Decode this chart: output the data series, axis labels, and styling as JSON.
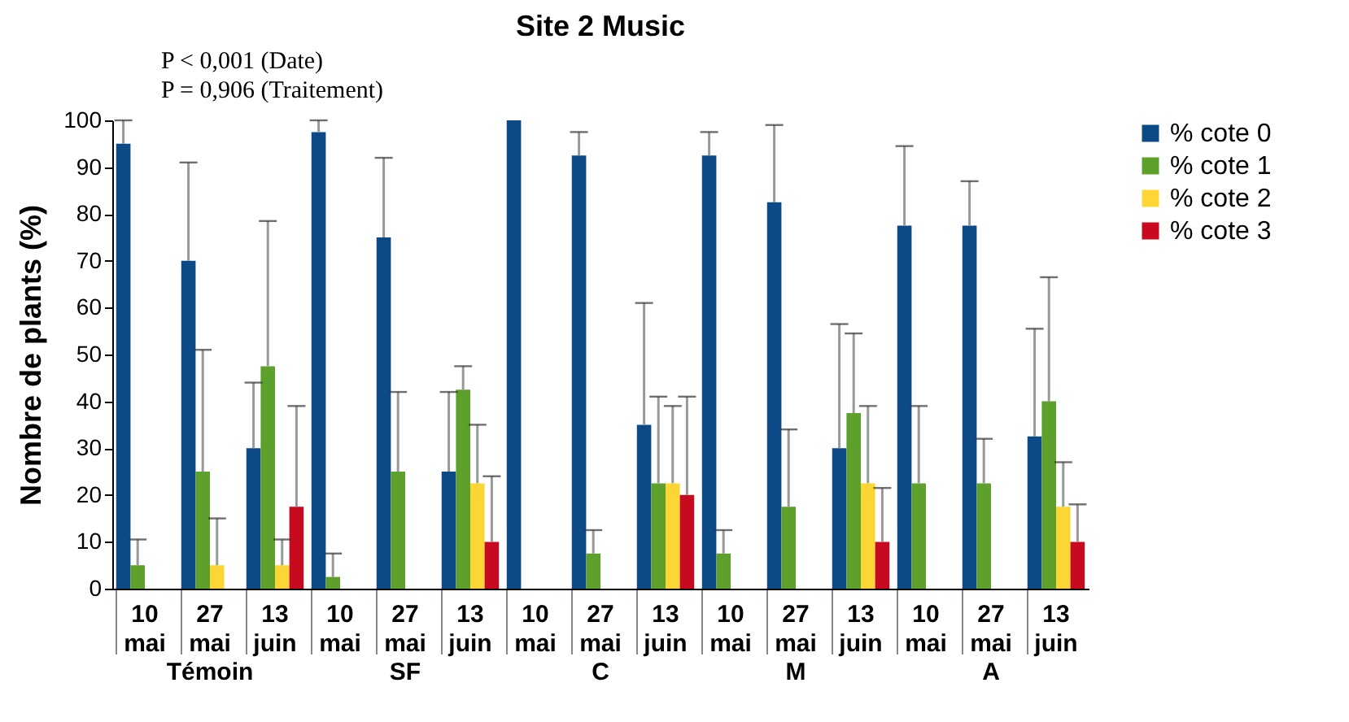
{
  "chart_data": {
    "type": "bar",
    "title": "Site 2 Music",
    "ylabel": "Nombre de plants (%)",
    "annotations": [
      "P < 0,001 (Date)",
      "P = 0,906 (Traitement)",
      "Témoin",
      "SF",
      "C",
      "M",
      "A"
    ],
    "categories": [
      "10 mai",
      "27 mai",
      "13 juin",
      "10 mai",
      "27 mai",
      "13 juin",
      "10 mai",
      "27 mai",
      "13 juin",
      "10 mai",
      "27 mai",
      "13 juin",
      "10 mai",
      "27 mai",
      "13 juin"
    ],
    "ylim": [
      0,
      100
    ],
    "yticks": [
      0,
      10,
      20,
      30,
      40,
      50,
      60,
      70,
      80,
      90,
      100
    ],
    "grid": false,
    "legend": "right",
    "series": [
      {
        "name": "% cote 0",
        "color": "#0b4a87",
        "values": [
          95,
          70,
          30,
          97.5,
          75,
          25,
          100,
          92.5,
          35,
          92.5,
          82.5,
          30,
          77.5,
          77.5,
          32.5
        ],
        "errors": [
          [
            95,
            100
          ],
          [
            70,
            91
          ],
          [
            30,
            44
          ],
          [
            97.5,
            100
          ],
          [
            75,
            92
          ],
          [
            25,
            42
          ],
          null,
          [
            92.5,
            97.5
          ],
          [
            35,
            61
          ],
          [
            92.5,
            97.5
          ],
          [
            82.5,
            99
          ],
          [
            30,
            56.5
          ],
          [
            77.5,
            94.5
          ],
          [
            77.5,
            87
          ],
          [
            32.5,
            55.5
          ]
        ]
      },
      {
        "name": "% cote 1",
        "color": "#5da02b",
        "values": [
          5,
          25,
          47.5,
          2.5,
          25,
          42.5,
          null,
          7.5,
          22.5,
          7.5,
          17.5,
          37.5,
          22.5,
          22.5,
          40
        ],
        "errors": [
          [
            5,
            10.5
          ],
          [
            25,
            51
          ],
          [
            47.5,
            78.5
          ],
          [
            2.5,
            7.5
          ],
          [
            25,
            42
          ],
          [
            42.5,
            47.5
          ],
          null,
          [
            7.5,
            12.5
          ],
          [
            22.5,
            41
          ],
          [
            7.5,
            12.5
          ],
          [
            17.5,
            34
          ],
          [
            37.5,
            54.5
          ],
          [
            22.5,
            39
          ],
          [
            22.5,
            32
          ],
          [
            40,
            66.5
          ]
        ]
      },
      {
        "name": "% cote 2",
        "color": "#fdd535",
        "values": [
          null,
          5,
          5,
          null,
          null,
          22.5,
          null,
          null,
          22.5,
          null,
          null,
          22.5,
          null,
          null,
          17.5
        ],
        "errors": [
          null,
          [
            5,
            15
          ],
          [
            5,
            10.5
          ],
          null,
          null,
          [
            22.5,
            35
          ],
          null,
          null,
          [
            22.5,
            39
          ],
          null,
          null,
          [
            22.5,
            39
          ],
          null,
          null,
          [
            17.5,
            27
          ]
        ]
      },
      {
        "name": "% cote 3",
        "color": "#c80a1e",
        "values": [
          null,
          null,
          17.5,
          null,
          null,
          10,
          null,
          null,
          20,
          null,
          null,
          10,
          null,
          null,
          10
        ],
        "errors": [
          null,
          null,
          [
            17.5,
            39
          ],
          null,
          null,
          [
            10,
            24
          ],
          null,
          null,
          [
            20,
            41
          ],
          null,
          null,
          [
            10,
            21.5
          ],
          null,
          null,
          [
            10,
            18
          ]
        ]
      }
    ]
  }
}
